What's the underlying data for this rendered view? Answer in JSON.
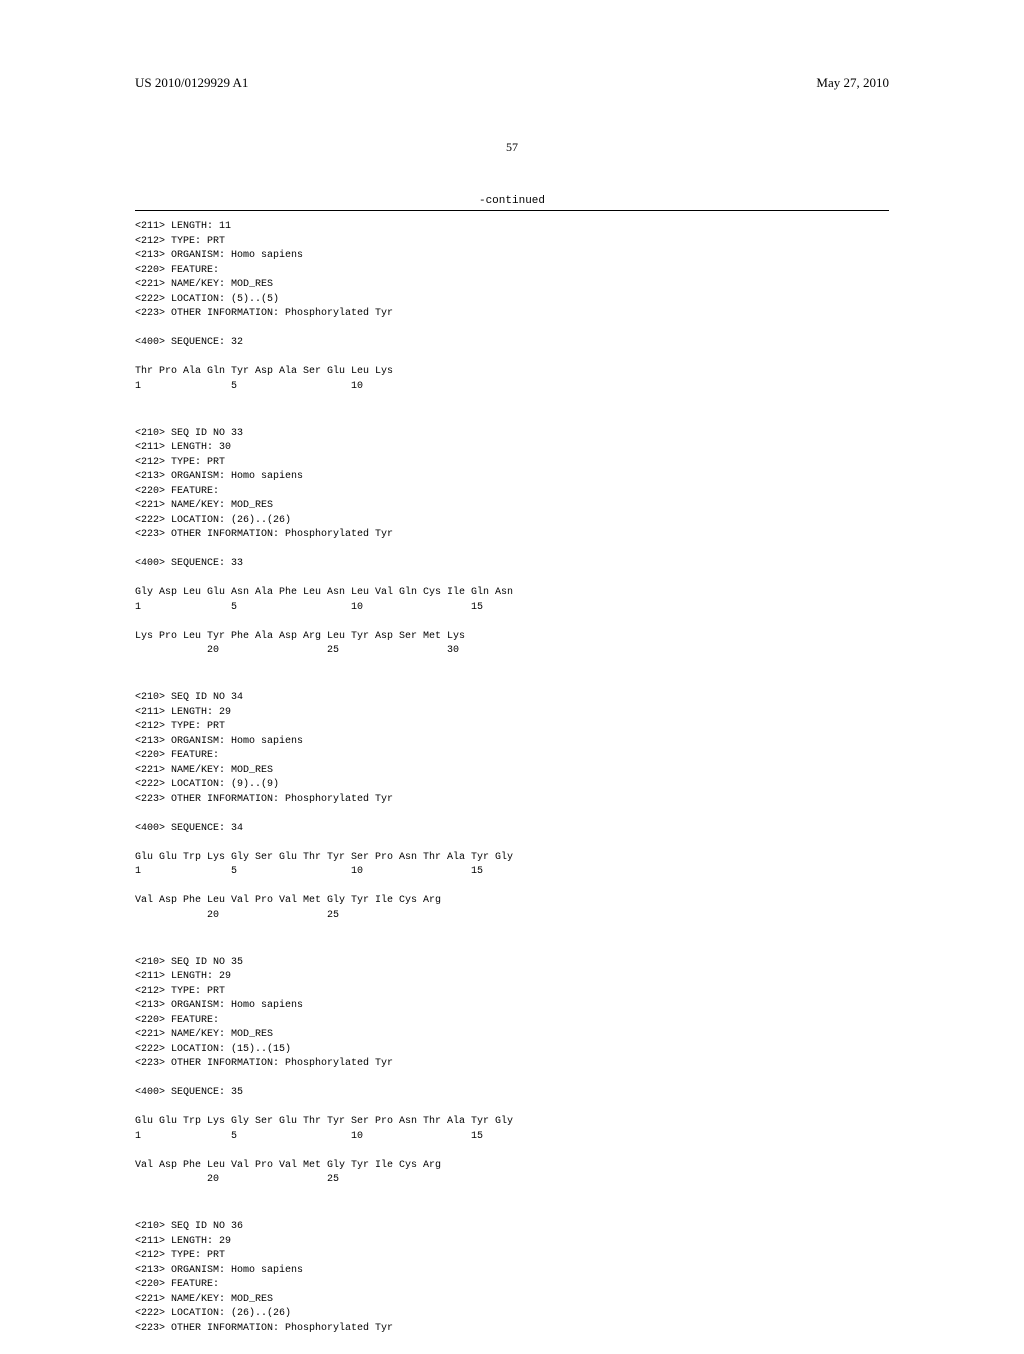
{
  "header": {
    "pub_number": "US 2010/0129929 A1",
    "pub_date": "May 27, 2010"
  },
  "page_number": "57",
  "continued_label": "-continued",
  "blocks": [
    {
      "lines": [
        "<211> LENGTH: 11",
        "<212> TYPE: PRT",
        "<213> ORGANISM: Homo sapiens",
        "<220> FEATURE:",
        "<221> NAME/KEY: MOD_RES",
        "<222> LOCATION: (5)..(5)",
        "<223> OTHER INFORMATION: Phosphorylated Tyr",
        "",
        "<400> SEQUENCE: 32",
        "",
        "Thr Pro Ala Gln Tyr Asp Ala Ser Glu Leu Lys",
        "1               5                   10"
      ]
    },
    {
      "lines": [
        "<210> SEQ ID NO 33",
        "<211> LENGTH: 30",
        "<212> TYPE: PRT",
        "<213> ORGANISM: Homo sapiens",
        "<220> FEATURE:",
        "<221> NAME/KEY: MOD_RES",
        "<222> LOCATION: (26)..(26)",
        "<223> OTHER INFORMATION: Phosphorylated Tyr",
        "",
        "<400> SEQUENCE: 33",
        "",
        "Gly Asp Leu Glu Asn Ala Phe Leu Asn Leu Val Gln Cys Ile Gln Asn",
        "1               5                   10                  15",
        "",
        "Lys Pro Leu Tyr Phe Ala Asp Arg Leu Tyr Asp Ser Met Lys",
        "            20                  25                  30"
      ]
    },
    {
      "lines": [
        "<210> SEQ ID NO 34",
        "<211> LENGTH: 29",
        "<212> TYPE: PRT",
        "<213> ORGANISM: Homo sapiens",
        "<220> FEATURE:",
        "<221> NAME/KEY: MOD_RES",
        "<222> LOCATION: (9)..(9)",
        "<223> OTHER INFORMATION: Phosphorylated Tyr",
        "",
        "<400> SEQUENCE: 34",
        "",
        "Glu Glu Trp Lys Gly Ser Glu Thr Tyr Ser Pro Asn Thr Ala Tyr Gly",
        "1               5                   10                  15",
        "",
        "Val Asp Phe Leu Val Pro Val Met Gly Tyr Ile Cys Arg",
        "            20                  25"
      ]
    },
    {
      "lines": [
        "<210> SEQ ID NO 35",
        "<211> LENGTH: 29",
        "<212> TYPE: PRT",
        "<213> ORGANISM: Homo sapiens",
        "<220> FEATURE:",
        "<221> NAME/KEY: MOD_RES",
        "<222> LOCATION: (15)..(15)",
        "<223> OTHER INFORMATION: Phosphorylated Tyr",
        "",
        "<400> SEQUENCE: 35",
        "",
        "Glu Glu Trp Lys Gly Ser Glu Thr Tyr Ser Pro Asn Thr Ala Tyr Gly",
        "1               5                   10                  15",
        "",
        "Val Asp Phe Leu Val Pro Val Met Gly Tyr Ile Cys Arg",
        "            20                  25"
      ]
    },
    {
      "lines": [
        "<210> SEQ ID NO 36",
        "<211> LENGTH: 29",
        "<212> TYPE: PRT",
        "<213> ORGANISM: Homo sapiens",
        "<220> FEATURE:",
        "<221> NAME/KEY: MOD_RES",
        "<222> LOCATION: (26)..(26)",
        "<223> OTHER INFORMATION: Phosphorylated Tyr"
      ]
    }
  ]
}
